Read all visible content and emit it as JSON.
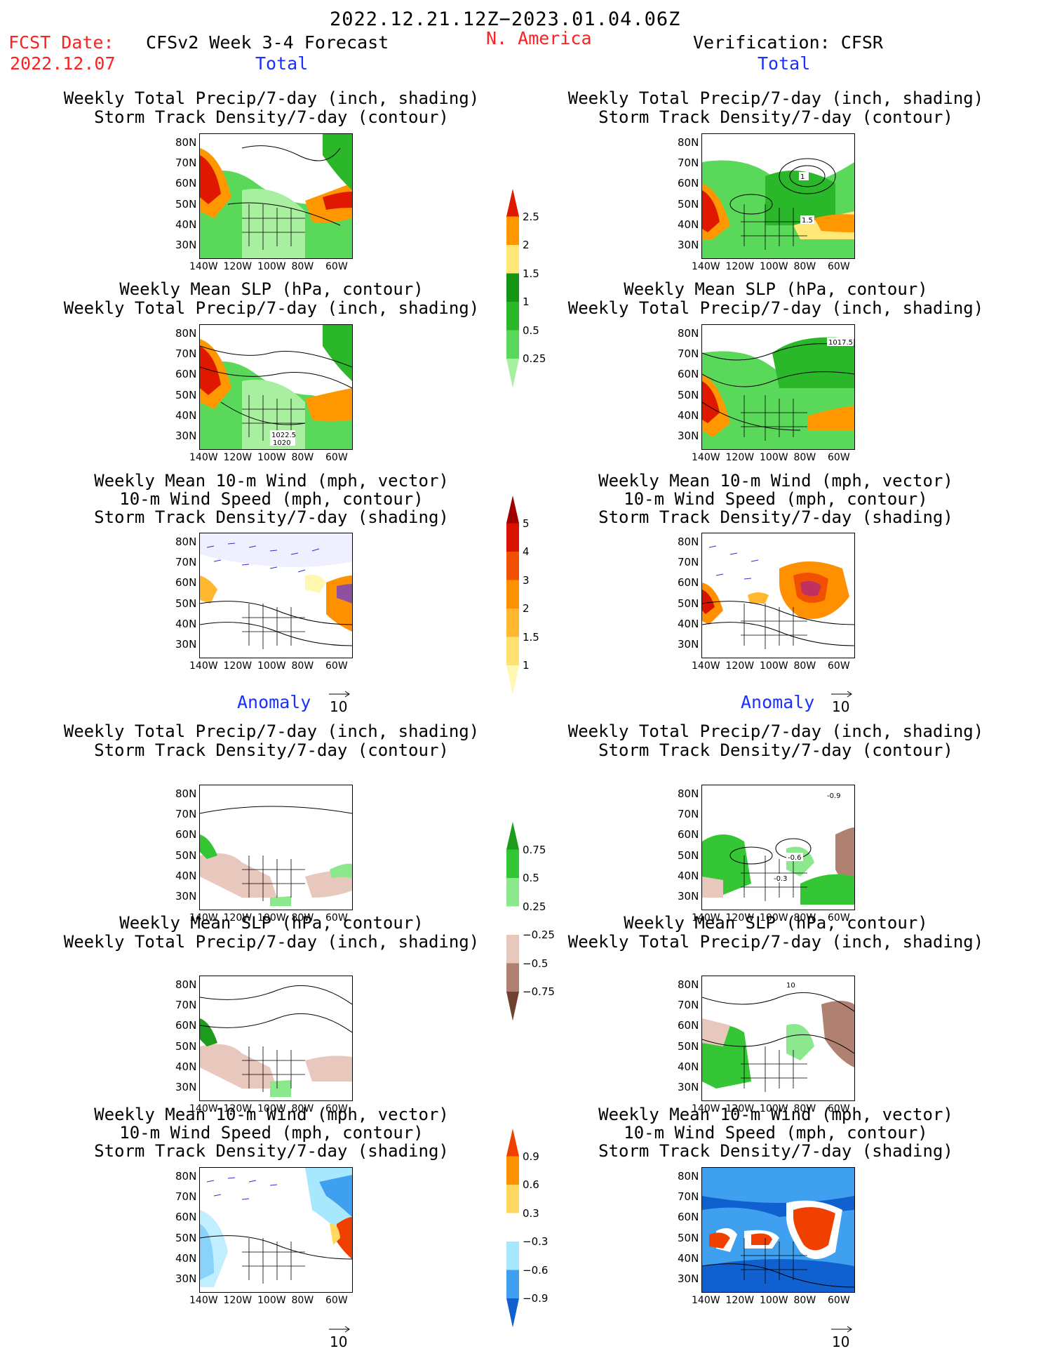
{
  "header": {
    "date_range": "2022.12.21.12Z−2023.01.04.06Z",
    "fcst_label": "FCST Date:",
    "fcst_date": "2022.12.07",
    "model": "CFSv2 Week 3-4 Forecast",
    "region": "N. America",
    "verification": "Verification: CFSR"
  },
  "sections": {
    "total": "Total",
    "anomaly": "Anomaly"
  },
  "titles": {
    "precip_track": [
      "Weekly Total Precip/7-day (inch, shading)",
      "Storm Track Density/7-day (contour)"
    ],
    "slp_precip": [
      "Weekly Mean SLP (hPa, contour)",
      "Weekly Total Precip/7-day (inch, shading)"
    ],
    "wind_track": [
      "Weekly Mean 10-m Wind (mph, vector)",
      "10-m Wind Speed (mph, contour)",
      "Storm Track Density/7-day (shading)"
    ]
  },
  "axes": {
    "lat": [
      "80N",
      "70N",
      "60N",
      "50N",
      "40N",
      "30N"
    ],
    "lon": [
      "140W",
      "120W",
      "100W",
      "80W",
      "60W"
    ]
  },
  "map_labels": {
    "slp_fcst_1": "1022.5",
    "slp_fcst_2": "1020",
    "slp_obs": "1017.5",
    "track_obs_1": "1",
    "track_obs_2": "1.5",
    "anom_track_1": "-0.9",
    "anom_track_2": "-0.6",
    "anom_track_3": "-0.3",
    "anom_slp": "10"
  },
  "vector_ref": "10",
  "colorbars": {
    "precip_total": {
      "labels": [
        "2.5",
        "2",
        "1.5",
        "1",
        "0.5",
        "0.25"
      ],
      "colors": [
        "#e01800",
        "#ff9800",
        "#ffe878",
        "#149614",
        "#2ab82a",
        "#5ad85a",
        "#a8f0a0"
      ]
    },
    "track_total": {
      "labels": [
        "5",
        "4",
        "3",
        "2",
        "1.5",
        "1"
      ],
      "colors": [
        "#a00000",
        "#d81400",
        "#f05000",
        "#ff9000",
        "#ffb830",
        "#ffe070",
        "#fff8b0"
      ]
    },
    "precip_anom": {
      "labels": [
        "0.75",
        "0.5",
        "0.25",
        "−0.25",
        "−0.5",
        "−0.75"
      ],
      "colors": [
        "#1c9c1c",
        "#34c634",
        "#8ce88c",
        "#ffffff",
        "#e8c8bc",
        "#b08070",
        "#704030"
      ]
    },
    "track_anom": {
      "labels": [
        "0.9",
        "0.6",
        "0.3",
        "−0.3",
        "−0.6",
        "−0.9"
      ],
      "colors": [
        "#f04000",
        "#ff9000",
        "#ffd860",
        "#ffffff",
        "#a8e8ff",
        "#40a0f0",
        "#1060d0"
      ]
    }
  }
}
